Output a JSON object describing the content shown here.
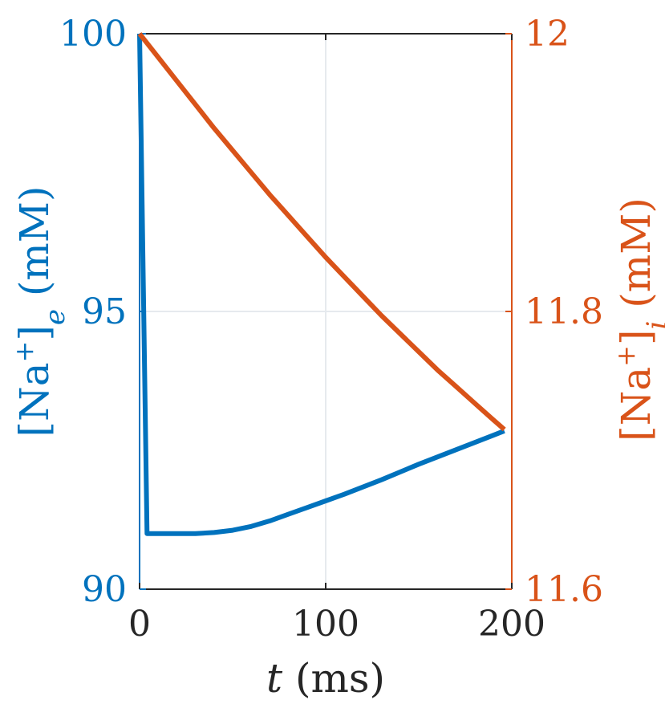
{
  "chart_data": {
    "type": "line",
    "title": "",
    "xlabel": {
      "var": "t",
      "unit": " (ms)"
    },
    "ylabel_left": {
      "prefix": "[Na",
      "sup": "+",
      "mid": "]",
      "sub": "e",
      "suffix": " (mM)"
    },
    "ylabel_right": {
      "prefix": "[Na",
      "sup": "+",
      "mid": "]",
      "sub": "i",
      "suffix": " (mM)"
    },
    "xlim": [
      0,
      200
    ],
    "ylim_left": [
      90,
      100
    ],
    "ylim_right": [
      11.6,
      12
    ],
    "xticks": [
      "0",
      "100",
      "200"
    ],
    "yticks_left": [
      "90",
      "95",
      "100"
    ],
    "yticks_right": [
      "11.6",
      "11.8",
      "12"
    ],
    "grid": true,
    "colors": {
      "left": "#0072BD",
      "right": "#D95319",
      "axis": "#262626",
      "grid": "#E6EAEE"
    },
    "series": [
      {
        "axis": "left",
        "x": [
          0,
          4,
          10,
          20,
          30,
          40,
          50,
          60,
          70,
          80,
          90,
          100,
          110,
          120,
          130,
          140,
          150,
          160,
          170,
          180,
          190,
          196
        ],
        "y": [
          100,
          91.0,
          91.0,
          91.0,
          91.0,
          91.02,
          91.06,
          91.13,
          91.23,
          91.35,
          91.47,
          91.59,
          91.71,
          91.84,
          91.97,
          92.11,
          92.25,
          92.38,
          92.51,
          92.64,
          92.77,
          92.85
        ]
      },
      {
        "axis": "right",
        "x": [
          0,
          10,
          20,
          30,
          40,
          50,
          60,
          70,
          80,
          90,
          100,
          110,
          120,
          130,
          140,
          150,
          160,
          170,
          180,
          190,
          196
        ],
        "y": [
          12.0,
          11.983,
          11.966,
          11.949,
          11.932,
          11.916,
          11.9,
          11.884,
          11.869,
          11.854,
          11.839,
          11.825,
          11.811,
          11.797,
          11.784,
          11.771,
          11.758,
          11.746,
          11.734,
          11.722,
          11.715
        ]
      }
    ]
  }
}
